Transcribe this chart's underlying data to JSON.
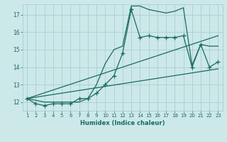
{
  "xlabel": "Humidex (Indice chaleur)",
  "bg_color": "#cce8e8",
  "grid_color": "#aacfcf",
  "line_color": "#1a6b60",
  "x_ticks": [
    1,
    2,
    3,
    4,
    5,
    6,
    7,
    8,
    9,
    10,
    11,
    12,
    13,
    14,
    15,
    16,
    17,
    18,
    19,
    20,
    21,
    22,
    23
  ],
  "y_ticks": [
    12,
    13,
    14,
    15,
    16,
    17
  ],
  "ylim": [
    11.5,
    17.6
  ],
  "xlim": [
    0.5,
    23.5
  ],
  "series": [
    {
      "x": [
        1,
        2,
        3,
        4,
        5,
        6,
        7,
        8,
        9,
        10,
        11,
        12,
        13,
        14,
        15,
        16,
        17,
        18,
        19,
        20,
        21,
        22,
        23
      ],
      "y": [
        12.2,
        11.9,
        11.8,
        11.9,
        11.9,
        11.9,
        12.2,
        12.2,
        12.5,
        13.0,
        13.5,
        14.8,
        17.3,
        15.7,
        15.8,
        15.7,
        15.7,
        15.7,
        15.8,
        14.0,
        15.3,
        14.0,
        14.3
      ],
      "marker": "+",
      "markersize": 4,
      "linewidth": 0.9,
      "with_markers": true
    },
    {
      "x": [
        1,
        2,
        3,
        4,
        5,
        6,
        7,
        8,
        9,
        10,
        11,
        12,
        13,
        14,
        15,
        16,
        17,
        18,
        19,
        20,
        21,
        22,
        23
      ],
      "y": [
        12.2,
        12.1,
        12.0,
        12.0,
        12.0,
        12.0,
        12.0,
        12.2,
        13.0,
        14.2,
        15.0,
        15.2,
        17.5,
        17.5,
        17.3,
        17.2,
        17.1,
        17.2,
        17.4,
        14.1,
        15.3,
        15.2,
        15.2
      ],
      "marker": null,
      "linewidth": 0.9,
      "with_markers": false
    },
    {
      "x": [
        1,
        23
      ],
      "y": [
        12.2,
        13.9
      ],
      "marker": null,
      "linewidth": 0.9,
      "with_markers": false
    },
    {
      "x": [
        1,
        23
      ],
      "y": [
        12.2,
        15.8
      ],
      "marker": null,
      "linewidth": 0.9,
      "with_markers": false
    }
  ]
}
